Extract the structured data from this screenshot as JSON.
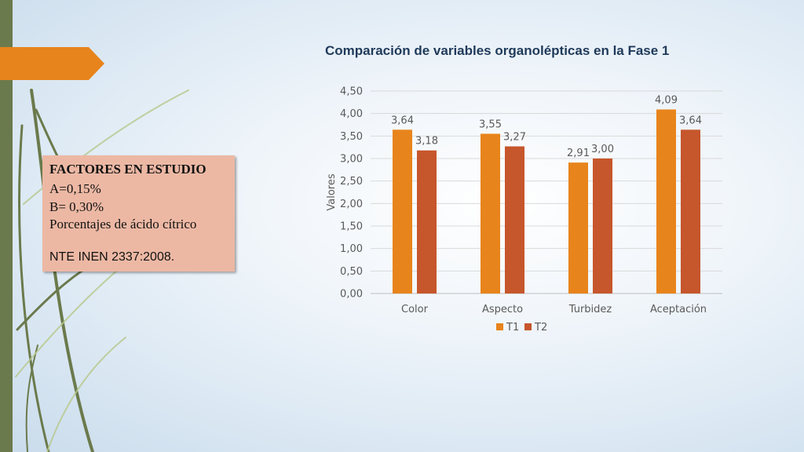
{
  "slide": {
    "factors": {
      "heading": "FACTORES EN ESTUDIO",
      "line_a": "A=0,15%",
      "line_b": "B= 0,30%",
      "line_acid": "Porcentajes de ácido cítrico",
      "norm": "NTE INEN 2337:2008."
    },
    "colors": {
      "accent_arrow": "#e8841c",
      "left_bar": "#6b7a4c",
      "box_fill": "#ecb8a4"
    }
  },
  "chart_data": {
    "type": "bar",
    "title": "Comparación de variables organolépticas en la Fase 1",
    "xlabel": "",
    "ylabel": "Valores",
    "categories": [
      "Color",
      "Aspecto",
      "Turbidez",
      "Aceptación"
    ],
    "series": [
      {
        "name": "T1",
        "values": [
          3.64,
          3.55,
          2.91,
          4.09
        ],
        "labels": [
          "3,64",
          "3,55",
          "2,91",
          "4,09"
        ],
        "color": "#e8841c"
      },
      {
        "name": "T2",
        "values": [
          3.18,
          3.27,
          3.0,
          3.64
        ],
        "labels": [
          "3,18",
          "3,27",
          "3,00",
          "3,64"
        ],
        "color": "#c6562c"
      }
    ],
    "ylim": [
      0,
      4.5
    ],
    "yticks": [
      "0,00",
      "0,50",
      "1,00",
      "1,50",
      "2,00",
      "2,50",
      "3,00",
      "3,50",
      "4,00",
      "4,50"
    ],
    "grid": true,
    "legend": "bottom"
  }
}
